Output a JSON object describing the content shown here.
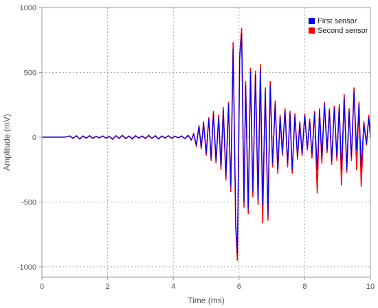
{
  "chart_data": {
    "type": "line",
    "title": "",
    "xlabel": "Time (ms)",
    "ylabel": "Amplitude (mV)",
    "xlim": [
      0,
      10
    ],
    "ylim": [
      -1080,
      1000
    ],
    "xticks": [
      0,
      2,
      4,
      6,
      8,
      10
    ],
    "yticks": [
      -1000,
      -500,
      0,
      500,
      1000
    ],
    "xtick_labels": [
      "0",
      "2",
      "4",
      "6",
      "8",
      "10"
    ],
    "ytick_labels": [
      "-1000",
      "-500",
      "0",
      "500",
      "1000"
    ],
    "grid": true,
    "legend_position": "top-right",
    "series": [
      {
        "name": "First sensor",
        "color": "#0000ff",
        "x": [
          0,
          0.4,
          0.7,
          0.85,
          0.95,
          1.05,
          1.15,
          1.25,
          1.35,
          1.45,
          1.55,
          1.65,
          1.75,
          1.85,
          1.95,
          2.05,
          2.15,
          2.25,
          2.35,
          2.45,
          2.55,
          2.65,
          2.75,
          2.85,
          2.95,
          3.05,
          3.15,
          3.25,
          3.35,
          3.45,
          3.55,
          3.65,
          3.75,
          3.85,
          3.95,
          4.05,
          4.15,
          4.25,
          4.35,
          4.45,
          4.55,
          4.62,
          4.7,
          4.78,
          4.85,
          4.92,
          5.0,
          5.08,
          5.15,
          5.22,
          5.3,
          5.38,
          5.45,
          5.52,
          5.6,
          5.68,
          5.75,
          5.82,
          5.9,
          5.95,
          6.02,
          6.08,
          6.15,
          6.2,
          6.28,
          6.35,
          6.42,
          6.5,
          6.58,
          6.65,
          6.72,
          6.8,
          6.88,
          6.95,
          7.02,
          7.1,
          7.18,
          7.25,
          7.32,
          7.4,
          7.48,
          7.55,
          7.62,
          7.7,
          7.78,
          7.85,
          7.92,
          8.0,
          8.08,
          8.15,
          8.22,
          8.3,
          8.38,
          8.45,
          8.52,
          8.6,
          8.68,
          8.75,
          8.82,
          8.9,
          8.98,
          9.05,
          9.12,
          9.2,
          9.28,
          9.35,
          9.42,
          9.5,
          9.58,
          9.65,
          9.72,
          9.8,
          9.88,
          9.95,
          10.0
        ],
        "values": [
          0,
          0,
          0,
          8,
          -8,
          10,
          -12,
          8,
          -6,
          10,
          -8,
          6,
          -5,
          8,
          -6,
          5,
          -15,
          10,
          -8,
          12,
          -10,
          8,
          -12,
          10,
          -6,
          8,
          -10,
          12,
          -8,
          10,
          -12,
          8,
          -6,
          10,
          -8,
          6,
          -5,
          8,
          -10,
          12,
          -20,
          25,
          -60,
          80,
          -80,
          110,
          -120,
          140,
          -160,
          180,
          -180,
          150,
          -220,
          210,
          -300,
          250,
          -380,
          680,
          -650,
          -900,
          600,
          800,
          -500,
          400,
          -550,
          500,
          -420,
          480,
          -480,
          520,
          -520,
          350,
          -600,
          400,
          -200,
          250,
          -250,
          150,
          -120,
          200,
          -200,
          180,
          -250,
          160,
          -150,
          100,
          -120,
          160,
          -80,
          120,
          -130,
          180,
          -250,
          200,
          -150,
          250,
          -100,
          200,
          -180,
          220,
          -150,
          230,
          -250,
          300,
          -250,
          200,
          -150,
          350,
          -100,
          250,
          -230,
          100,
          -50,
          150,
          0
        ]
      },
      {
        "name": "Second sensor",
        "color": "#ff0000",
        "x": [
          0,
          0.4,
          0.7,
          0.85,
          0.95,
          1.05,
          1.15,
          1.25,
          1.35,
          1.45,
          1.55,
          1.65,
          1.75,
          1.85,
          1.95,
          2.05,
          2.15,
          2.25,
          2.35,
          2.45,
          2.55,
          2.65,
          2.75,
          2.85,
          2.95,
          3.05,
          3.15,
          3.25,
          3.35,
          3.45,
          3.55,
          3.65,
          3.75,
          3.85,
          3.95,
          4.05,
          4.15,
          4.25,
          4.35,
          4.45,
          4.55,
          4.62,
          4.7,
          4.78,
          4.85,
          4.92,
          5.0,
          5.08,
          5.15,
          5.22,
          5.3,
          5.38,
          5.45,
          5.52,
          5.6,
          5.68,
          5.75,
          5.82,
          5.9,
          5.95,
          6.02,
          6.08,
          6.15,
          6.2,
          6.28,
          6.35,
          6.42,
          6.5,
          6.58,
          6.65,
          6.72,
          6.8,
          6.88,
          6.95,
          7.02,
          7.1,
          7.18,
          7.25,
          7.32,
          7.4,
          7.48,
          7.55,
          7.62,
          7.7,
          7.78,
          7.85,
          7.92,
          8.0,
          8.08,
          8.15,
          8.22,
          8.3,
          8.38,
          8.45,
          8.52,
          8.6,
          8.68,
          8.75,
          8.82,
          8.9,
          8.98,
          9.05,
          9.12,
          9.2,
          9.28,
          9.35,
          9.42,
          9.5,
          9.58,
          9.65,
          9.72,
          9.8,
          9.88,
          9.95,
          10.0
        ],
        "values": [
          0,
          0,
          0,
          10,
          -10,
          12,
          -15,
          10,
          -8,
          12,
          -10,
          8,
          -6,
          10,
          -8,
          6,
          -18,
          12,
          -10,
          15,
          -12,
          10,
          -15,
          12,
          -8,
          10,
          -12,
          15,
          -10,
          12,
          -15,
          10,
          -8,
          12,
          -10,
          8,
          -6,
          10,
          -12,
          15,
          -25,
          30,
          -70,
          90,
          -90,
          120,
          -140,
          150,
          -180,
          200,
          -200,
          170,
          -250,
          230,
          -330,
          270,
          -420,
          730,
          -700,
          -950,
          640,
          840,
          -540,
          430,
          -590,
          530,
          -460,
          510,
          -520,
          560,
          -660,
          380,
          -640,
          430,
          -230,
          280,
          -280,
          170,
          -140,
          220,
          -230,
          200,
          -280,
          180,
          -170,
          120,
          -140,
          180,
          -100,
          140,
          -160,
          200,
          -430,
          220,
          -200,
          270,
          -120,
          220,
          -210,
          240,
          -180,
          250,
          -370,
          330,
          -270,
          220,
          -180,
          380,
          -250,
          270,
          -380,
          120,
          -60,
          170,
          0
        ]
      }
    ]
  }
}
